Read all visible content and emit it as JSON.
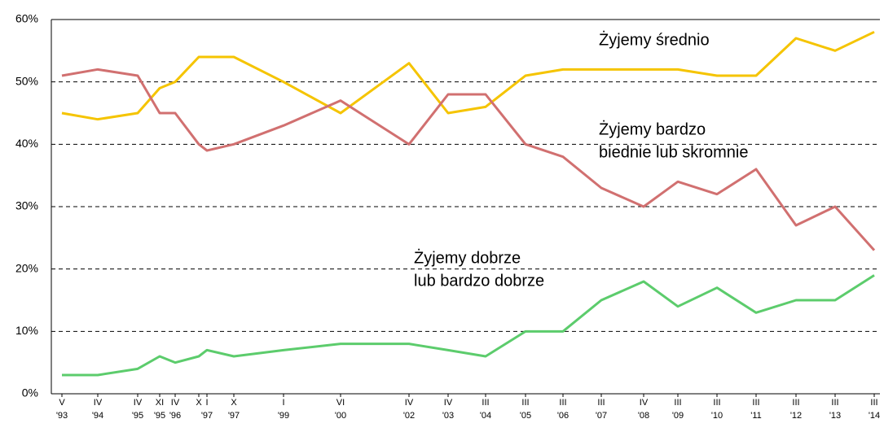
{
  "chart_data": {
    "type": "line",
    "categories": [
      {
        "month": "V",
        "year": "'93"
      },
      {
        "month": "IV",
        "year": "'94"
      },
      {
        "month": "IV",
        "year": "'95"
      },
      {
        "month": "XI",
        "year": "'95"
      },
      {
        "month": "IV",
        "year": "'96"
      },
      {
        "month": "X",
        "year": null
      },
      {
        "month": "I",
        "year": "'97"
      },
      {
        "month": "X",
        "year": "'97"
      },
      {
        "month": "I",
        "year": "'99"
      },
      {
        "month": "VI",
        "year": "'00"
      },
      {
        "month": "IV",
        "year": "'02"
      },
      {
        "month": "IV",
        "year": "'03"
      },
      {
        "month": "III",
        "year": "'04"
      },
      {
        "month": "III",
        "year": "'05"
      },
      {
        "month": "III",
        "year": "'06"
      },
      {
        "month": "III",
        "year": "'07"
      },
      {
        "month": "IV",
        "year": "'08"
      },
      {
        "month": "III",
        "year": "'09"
      },
      {
        "month": "III",
        "year": "'10"
      },
      {
        "month": "III",
        "year": "'11"
      },
      {
        "month": "III",
        "year": "'12"
      },
      {
        "month": "III",
        "year": "'13"
      },
      {
        "month": "III",
        "year": "'14"
      }
    ],
    "series": [
      {
        "color": "#f5c400",
        "values": [
          45,
          44,
          45,
          49,
          50,
          54,
          54,
          54,
          50,
          45,
          53,
          45,
          46,
          51,
          52,
          52,
          52,
          52,
          51,
          51,
          57,
          55,
          58
        ]
      },
      {
        "color": "#d17070",
        "values": [
          51,
          52,
          51,
          45,
          45,
          40,
          39,
          40,
          43,
          47,
          40,
          48,
          48,
          40,
          38,
          33,
          30,
          34,
          32,
          36,
          27,
          30,
          23
        ]
      },
      {
        "color": "#5ccc6c",
        "values": [
          3,
          3,
          4,
          6,
          5,
          6,
          7,
          6,
          7,
          8,
          8,
          7,
          6,
          10,
          10,
          15,
          18,
          14,
          17,
          13,
          15,
          15,
          19
        ]
      }
    ],
    "annotations": [
      {
        "lines": [
          "Żyjemy średnio"
        ]
      },
      {
        "lines": [
          "Żyjemy bardzo",
          "biednie lub skromnie"
        ]
      },
      {
        "lines": [
          "Żyjemy dobrze",
          "lub bardzo dobrze"
        ]
      }
    ],
    "ylim": [
      0,
      60
    ],
    "yticks": [
      {
        "value": 0,
        "label": "0%"
      },
      {
        "value": 10,
        "label": "10%"
      },
      {
        "value": 20,
        "label": "20%"
      },
      {
        "value": 30,
        "label": "30%"
      },
      {
        "value": 40,
        "label": "40%"
      },
      {
        "value": 50,
        "label": "50%"
      },
      {
        "value": 60,
        "label": "60%"
      }
    ],
    "grid": true
  }
}
